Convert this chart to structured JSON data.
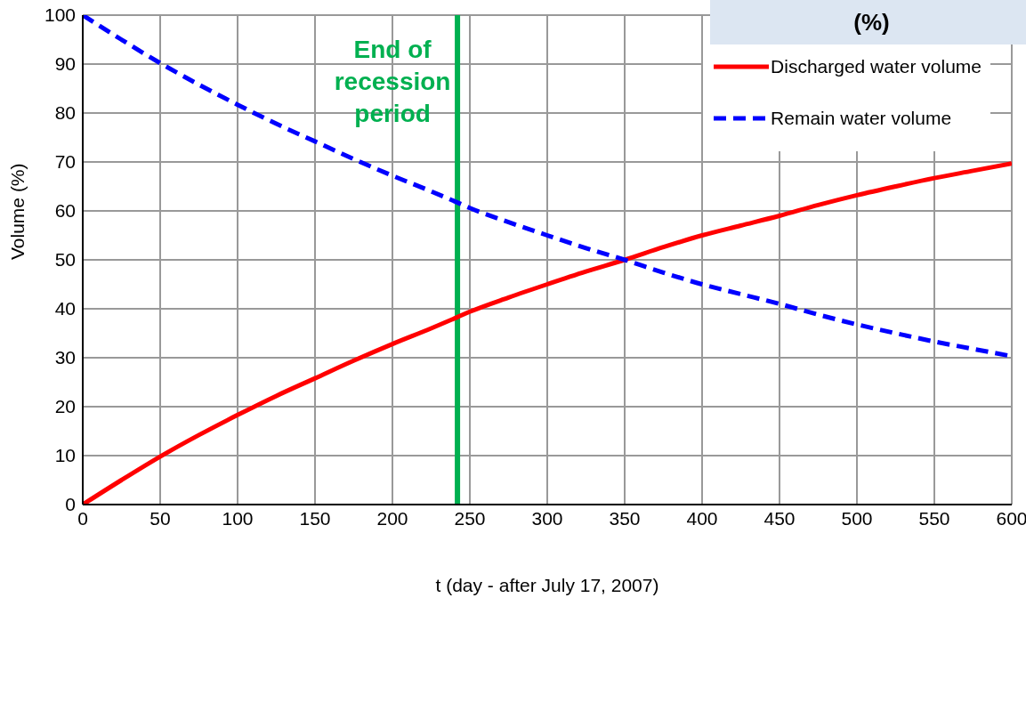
{
  "chart_data": {
    "type": "line",
    "xlabel": "t (day - after July 17, 2007)",
    "ylabel": "Volume (%)",
    "annotations": [
      "(%)"
    ],
    "x": [
      0,
      25,
      50,
      75,
      100,
      125,
      150,
      175,
      200,
      225,
      242,
      250,
      275,
      300,
      325,
      350,
      375,
      400,
      425,
      450,
      475,
      500,
      525,
      550,
      575,
      600
    ],
    "series": [
      {
        "name": "Discharged water volume",
        "color": "#ff0000",
        "line_style": "solid",
        "values": [
          0,
          5,
          9.8,
          14.2,
          18.3,
          22.2,
          25.8,
          29.4,
          32.8,
          36,
          38.3,
          39.4,
          42.3,
          45,
          47.6,
          50,
          52.6,
          55,
          57,
          59,
          61.2,
          63.2,
          65,
          66.7,
          68.2,
          69.7
        ]
      },
      {
        "name": "Remain water volume",
        "color": "#0000ff",
        "line_style": "dashed",
        "values": [
          100,
          95,
          90.2,
          85.8,
          81.7,
          77.8,
          74.2,
          70.6,
          67.2,
          64,
          61.7,
          60.6,
          57.7,
          55,
          52.4,
          50,
          47.4,
          45,
          43,
          41,
          38.8,
          36.8,
          35,
          33.3,
          31.8,
          30.3
        ]
      }
    ],
    "xlim": [
      0,
      600
    ],
    "xticks": [
      0,
      50,
      100,
      150,
      200,
      250,
      300,
      350,
      400,
      450,
      500,
      550,
      600
    ],
    "ylim": [
      0,
      100
    ],
    "yticks": [
      0,
      10,
      20,
      30,
      40,
      50,
      60,
      70,
      80,
      90,
      100
    ],
    "grid": true,
    "legend": "top right",
    "marker": "none",
    "ref_lines": [
      {
        "axis": "x",
        "value": 242,
        "label": "End of recession period",
        "color": "#00b050"
      }
    ]
  }
}
